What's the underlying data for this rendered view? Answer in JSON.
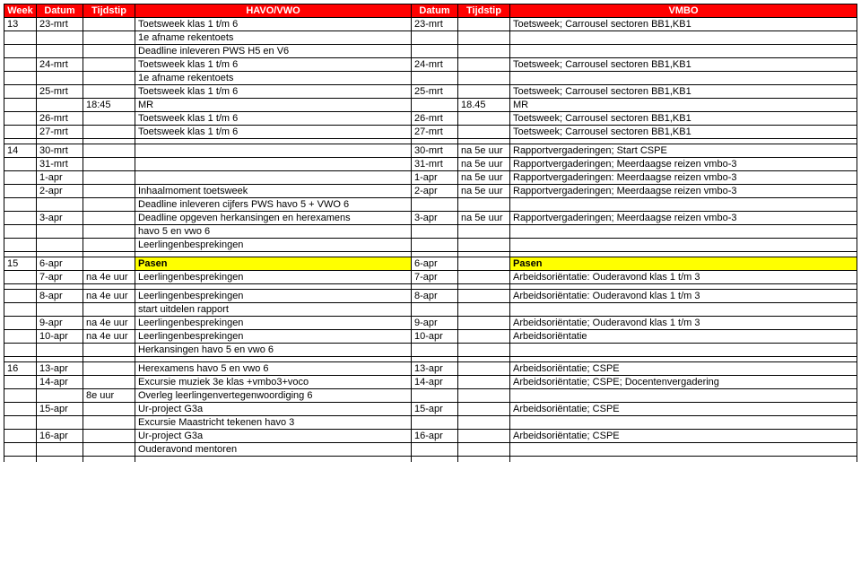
{
  "headers": {
    "week": "Week",
    "datum": "Datum",
    "tijdstip": "Tijdstip",
    "havovwo": "HAVO/VWO",
    "datum2": "Datum",
    "tijdstip2": "Tijdstip",
    "vmbo": "VMBO"
  },
  "blocks": [
    {
      "rows": [
        {
          "week": "13",
          "d1": "23-mrt",
          "t1": "",
          "c1": "Toetsweek klas 1 t/m 6",
          "d2": "23-mrt",
          "t2": "",
          "c2": "Toetsweek; Carrousel sectoren BB1,KB1"
        },
        {
          "week": "",
          "d1": "",
          "t1": "",
          "c1": "1e afname rekentoets",
          "d2": "",
          "t2": "",
          "c2": ""
        },
        {
          "week": "",
          "d1": "",
          "t1": "",
          "c1": "Deadline inleveren PWS H5 en V6",
          "d2": "",
          "t2": "",
          "c2": ""
        },
        {
          "week": "",
          "d1": "24-mrt",
          "t1": "",
          "c1": "Toetsweek klas 1 t/m 6",
          "d2": "24-mrt",
          "t2": "",
          "c2": "Toetsweek; Carrousel sectoren BB1,KB1"
        },
        {
          "week": "",
          "d1": "",
          "t1": "",
          "c1": "1e afname rekentoets",
          "d2": "",
          "t2": "",
          "c2": ""
        },
        {
          "week": "",
          "d1": "25-mrt",
          "t1": "",
          "c1": "Toetsweek klas 1 t/m 6",
          "d2": "25-mrt",
          "t2": "",
          "c2": "Toetsweek; Carrousel sectoren BB1,KB1"
        },
        {
          "week": "",
          "d1": "",
          "t1": "18:45",
          "c1": "MR",
          "d2": "",
          "t2": "18.45",
          "c2": "MR"
        },
        {
          "week": "",
          "d1": "26-mrt",
          "t1": "",
          "c1": "Toetsweek klas 1 t/m 6",
          "d2": "26-mrt",
          "t2": "",
          "c2": "Toetsweek; Carrousel sectoren BB1,KB1"
        },
        {
          "week": "",
          "d1": "27-mrt",
          "t1": "",
          "c1": "Toetsweek klas 1 t/m 6",
          "d2": "27-mrt",
          "t2": "",
          "c2": "Toetsweek; Carrousel sectoren BB1,KB1"
        }
      ]
    },
    {
      "rows": [
        {
          "week": "14",
          "d1": "30-mrt",
          "t1": "",
          "c1": "",
          "d2": "30-mrt",
          "t2": "na 5e uur",
          "c2": "Rapportvergaderingen; Start CSPE"
        },
        {
          "week": "",
          "d1": "31-mrt",
          "t1": "",
          "c1": "",
          "d2": "31-mrt",
          "t2": "na 5e uur",
          "c2": "Rapportvergaderingen; Meerdaagse reizen vmbo-3"
        },
        {
          "week": "",
          "d1": "1-apr",
          "t1": "",
          "c1": "",
          "d2": "1-apr",
          "t2": "na 5e uur",
          "c2": "Rapportvergaderingen: Meerdaagse reizen vmbo-3"
        },
        {
          "week": "",
          "d1": "2-apr",
          "t1": "",
          "c1": "Inhaalmoment toetsweek",
          "d2": "2-apr",
          "t2": "na 5e uur",
          "c2": "Rapportvergaderingen; Meerdaagse reizen vmbo-3"
        },
        {
          "week": "",
          "d1": "",
          "t1": "",
          "c1": "Deadline inleveren cijfers PWS havo 5 + VWO 6",
          "d2": "",
          "t2": "",
          "c2": ""
        },
        {
          "week": "",
          "d1": "3-apr",
          "t1": "",
          "c1": "Deadline opgeven herkansingen en herexamens",
          "d2": "3-apr",
          "t2": "na 5e uur",
          "c2": "Rapportvergaderingen; Meerdaagse reizen vmbo-3"
        },
        {
          "week": "",
          "d1": "",
          "t1": "",
          "c1": "havo 5 en vwo 6",
          "d2": "",
          "t2": "",
          "c2": ""
        },
        {
          "week": "",
          "d1": "",
          "t1": "",
          "c1": "Leerlingenbesprekingen",
          "d2": "",
          "t2": "",
          "c2": ""
        }
      ]
    },
    {
      "rows": [
        {
          "week": "15",
          "d1": "6-apr",
          "t1": "",
          "c1": "Pasen",
          "d2": "6-apr",
          "t2": "",
          "c2": "Pasen",
          "highlight": true
        },
        {
          "week": "",
          "d1": "7-apr",
          "t1": "na 4e uur",
          "c1": "Leerlingenbesprekingen",
          "d2": "7-apr",
          "t2": "",
          "c2": "Arbeidsoriëntatie: Ouderavond klas 1 t/m 3"
        }
      ]
    },
    {
      "rows": [
        {
          "week": "",
          "d1": "8-apr",
          "t1": "na 4e uur",
          "c1": "Leerlingenbesprekingen",
          "d2": "8-apr",
          "t2": "",
          "c2": "Arbeidsoriëntatie: Ouderavond klas 1 t/m 3"
        },
        {
          "week": "",
          "d1": "",
          "t1": "",
          "c1": "start uitdelen rapport",
          "d2": "",
          "t2": "",
          "c2": ""
        },
        {
          "week": "",
          "d1": "9-apr",
          "t1": "na 4e uur",
          "c1": "Leerlingenbesprekingen",
          "d2": "9-apr",
          "t2": "",
          "c2": "Arbeidsoriëntatie; Ouderavond klas 1 t/m 3"
        },
        {
          "week": "",
          "d1": "10-apr",
          "t1": "na 4e uur",
          "c1": "Leerlingenbesprekingen",
          "d2": "10-apr",
          "t2": "",
          "c2": "Arbeidsoriëntatie"
        },
        {
          "week": "",
          "d1": "",
          "t1": "",
          "c1": "Herkansingen havo 5 en vwo 6",
          "d2": "",
          "t2": "",
          "c2": ""
        }
      ]
    },
    {
      "rows": [
        {
          "week": "16",
          "d1": "13-apr",
          "t1": "",
          "c1": "Herexamens havo 5 en vwo 6",
          "d2": "13-apr",
          "t2": "",
          "c2": "Arbeidsoriëntatie; CSPE"
        },
        {
          "week": "",
          "d1": "14-apr",
          "t1": "",
          "c1": "Excursie muziek 3e klas +vmbo3+voco",
          "d2": "14-apr",
          "t2": "",
          "c2": "Arbeidsoriëntatie; CSPE; Docentenvergadering"
        },
        {
          "week": "",
          "d1": "",
          "t1": "8e uur",
          "c1": "Overleg leerlingenvertegenwoordiging 6",
          "d2": "",
          "t2": "",
          "c2": ""
        },
        {
          "week": "",
          "d1": "15-apr",
          "t1": "",
          "c1": "Ur-project G3a",
          "d2": "15-apr",
          "t2": "",
          "c2": "Arbeidsoriëntatie; CSPE"
        },
        {
          "week": "",
          "d1": "",
          "t1": "",
          "c1": "Excursie Maastricht tekenen havo 3",
          "d2": "",
          "t2": "",
          "c2": ""
        },
        {
          "week": "",
          "d1": "16-apr",
          "t1": "",
          "c1": "Ur-project G3a",
          "d2": "16-apr",
          "t2": "",
          "c2": "Arbeidsoriëntatie; CSPE"
        },
        {
          "week": "",
          "d1": "",
          "t1": "",
          "c1": "Ouderavond mentoren",
          "d2": "",
          "t2": "",
          "c2": ""
        }
      ]
    }
  ],
  "colors": {
    "header_bg": "#ff0000",
    "header_fg": "#ffffff",
    "highlight_bg": "#ffff00",
    "highlight_fg": "#000000",
    "border": "#000000"
  }
}
